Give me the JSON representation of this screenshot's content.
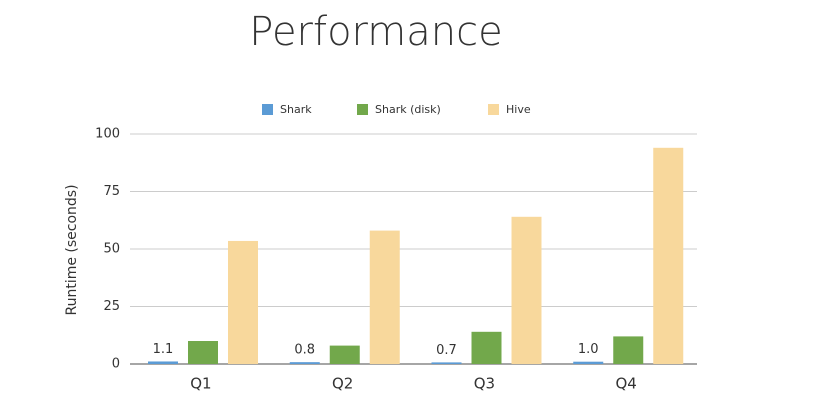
{
  "chart_data": {
    "type": "bar",
    "title": "Performance",
    "y_label": "Runtime (seconds)",
    "categories": [
      "Q1",
      "Q2",
      "Q3",
      "Q4"
    ],
    "series": [
      {
        "name": "Shark",
        "color": "#5b9bd5",
        "values": [
          1.1,
          0.8,
          0.7,
          1.0
        ],
        "value_labels": [
          "1.1",
          "0.8",
          "0.7",
          "1.0"
        ]
      },
      {
        "name": "Shark (disk)",
        "color": "#72a84b",
        "values": [
          10,
          8,
          14,
          12
        ]
      },
      {
        "name": "Hive",
        "color": "#f8d89c",
        "values": [
          53.5,
          58,
          64,
          94
        ]
      }
    ],
    "ylim": [
      0,
      100
    ],
    "yticks": [
      0,
      25,
      50,
      75,
      100
    ],
    "grid": true
  }
}
